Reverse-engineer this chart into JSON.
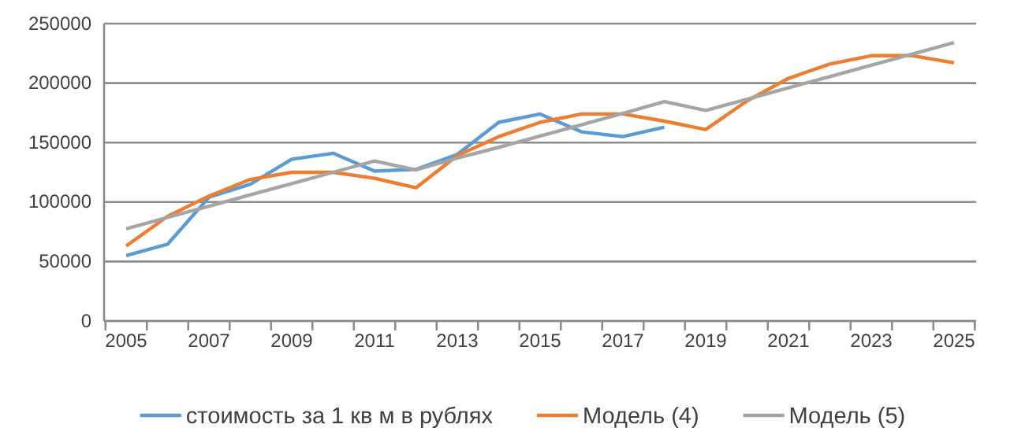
{
  "chart_data": {
    "type": "line",
    "categories": [
      "2005",
      null,
      "2007",
      null,
      "2009",
      null,
      "2011",
      null,
      "2013",
      null,
      "2015",
      null,
      "2017",
      null,
      "2019",
      null,
      "2021",
      null,
      "2023",
      null,
      "2025"
    ],
    "ylim": [
      0,
      250000
    ],
    "yticks": [
      0,
      50000,
      100000,
      150000,
      200000,
      250000
    ],
    "grid": "y",
    "legend": "bottom",
    "marker": "none",
    "line_style": "solid",
    "series": [
      {
        "name": "стоимость за 1 кв м в рублях",
        "color": "#5b9bd5",
        "values": [
          55000,
          64500,
          104000,
          115000,
          136000,
          141000,
          126000,
          127500,
          140000,
          167000,
          174000,
          159000,
          155000,
          163000,
          null,
          null,
          null,
          null,
          null,
          null,
          null
        ]
      },
      {
        "name": "Модель (4)",
        "color": "#ed7d31",
        "values": [
          63000,
          88000,
          105000,
          119000,
          125000,
          125000,
          120000,
          112000,
          139000,
          155000,
          167000,
          174000,
          174000,
          168000,
          161000,
          185000,
          204000,
          216000,
          223000,
          223000,
          217000
        ]
      },
      {
        "name": "Модель (5)",
        "color": "#a5a5a5",
        "values": [
          77500,
          87000,
          96500,
          106000,
          115500,
          125000,
          134500,
          127000,
          137000,
          146000,
          155500,
          165000,
          174500,
          184500,
          177000,
          186500,
          196000,
          205500,
          215000,
          224500,
          234000
        ]
      }
    ]
  }
}
